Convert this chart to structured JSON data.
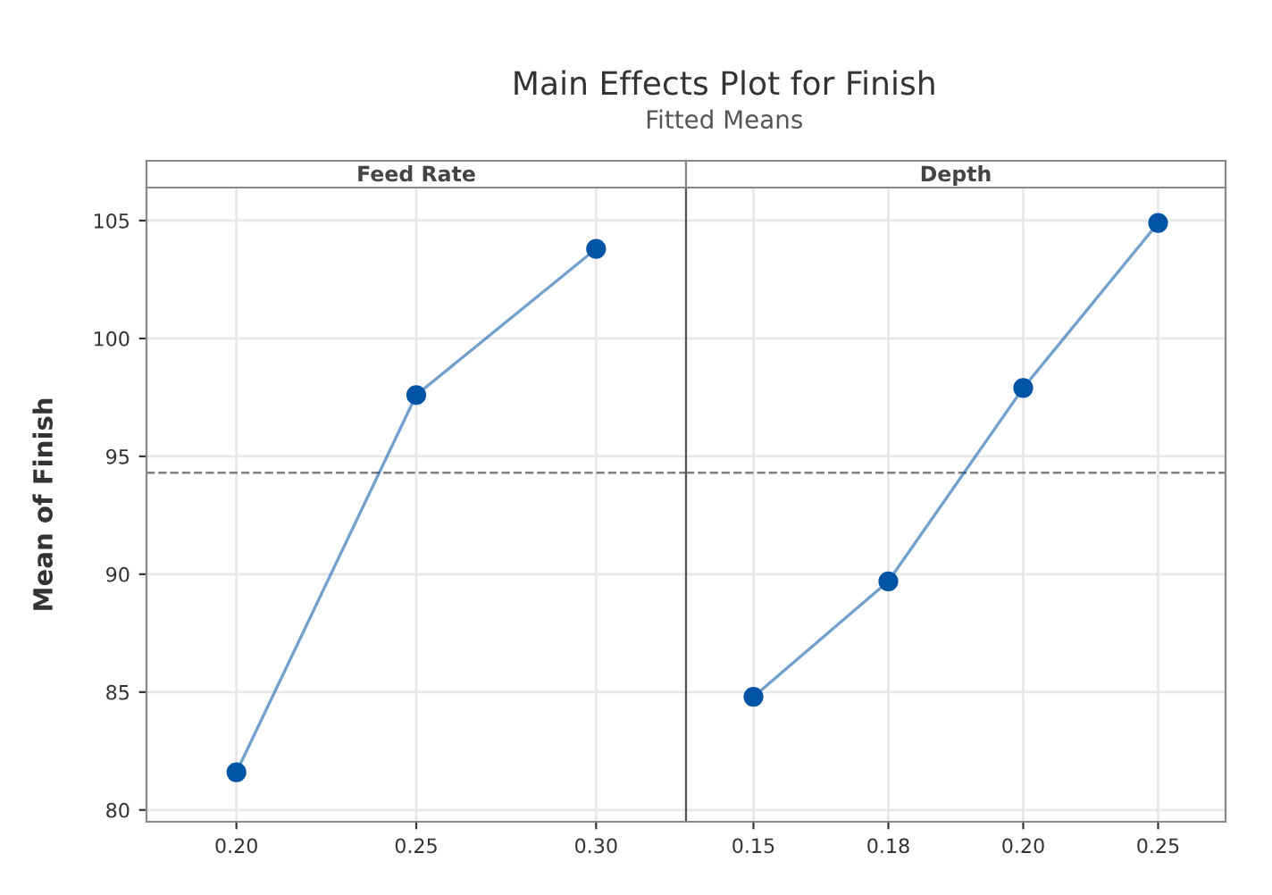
{
  "chart_data": [
    {
      "type": "line",
      "title": "Main Effects Plot for Finish",
      "subtitle": "Fitted Means",
      "xlabel": "Feed Rate",
      "ylabel": "Mean of Finish",
      "categories": [
        "0.20",
        "0.25",
        "0.30"
      ],
      "series": [
        {
          "color": "#0054a6",
          "values": [
            81.6,
            97.6,
            103.8
          ]
        }
      ],
      "ylim": [
        79.5,
        106.4
      ],
      "yticks": [
        80,
        85,
        90,
        95,
        100,
        105
      ],
      "ref_lines": [
        {
          "axis": "y",
          "value": 94.3,
          "color": "#808080",
          "line_style": "dashed"
        }
      ],
      "grid": true,
      "marker": "circle",
      "line_style": "solid"
    },
    {
      "type": "line",
      "xlabel": "Depth",
      "categories": [
        "0.15",
        "0.18",
        "0.20",
        "0.25"
      ],
      "series": [
        {
          "color": "#0054a6",
          "values": [
            84.8,
            89.7,
            97.9,
            104.9
          ]
        }
      ],
      "ylim": [
        79.5,
        106.4
      ],
      "yticks": [
        80,
        85,
        90,
        95,
        100,
        105
      ],
      "ref_lines": [
        {
          "axis": "y",
          "value": 94.3,
          "color": "#808080",
          "line_style": "dashed"
        }
      ],
      "grid": true,
      "marker": "circle",
      "line_style": "solid",
      "tick_labels": "x"
    }
  ]
}
